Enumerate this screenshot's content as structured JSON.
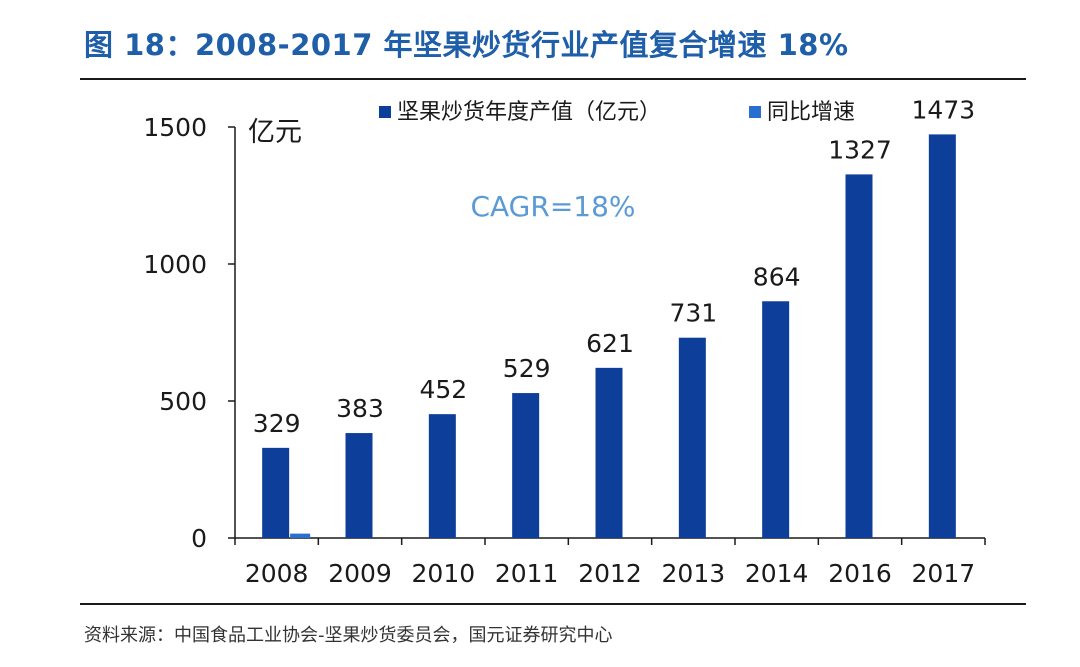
{
  "figure": {
    "title": "图 18：2008-2017 年坚果炒货行业产值复合增速 18%",
    "source": "资料来源：中国食品工业协会-坚果炒货委员会，国元证券研究中心"
  },
  "chart_data": {
    "type": "bar",
    "ylabel": "亿元",
    "ylim": [
      0,
      1500
    ],
    "yticks": [
      0,
      500,
      1000,
      1500
    ],
    "categories": [
      "2008",
      "2009",
      "2010",
      "2011",
      "2012",
      "2013",
      "2014",
      "2016",
      "2017"
    ],
    "series": [
      {
        "name": "坚果炒货年度产值（亿元）",
        "color": "#0d3f9a",
        "values": [
          329,
          383,
          452,
          529,
          621,
          731,
          864,
          1327,
          1473
        ],
        "labels": [
          "329",
          "383",
          "452",
          "529",
          "621",
          "731",
          "864",
          "1327",
          "1473"
        ]
      },
      {
        "name": "同比增速",
        "color": "#2a6fd0",
        "values": [
          16,
          null,
          null,
          null,
          null,
          null,
          null,
          null,
          null
        ]
      }
    ],
    "annotation": {
      "text": "CAGR=18%",
      "color": "#5b9bd5"
    },
    "legend_position": "top",
    "grid": false
  }
}
